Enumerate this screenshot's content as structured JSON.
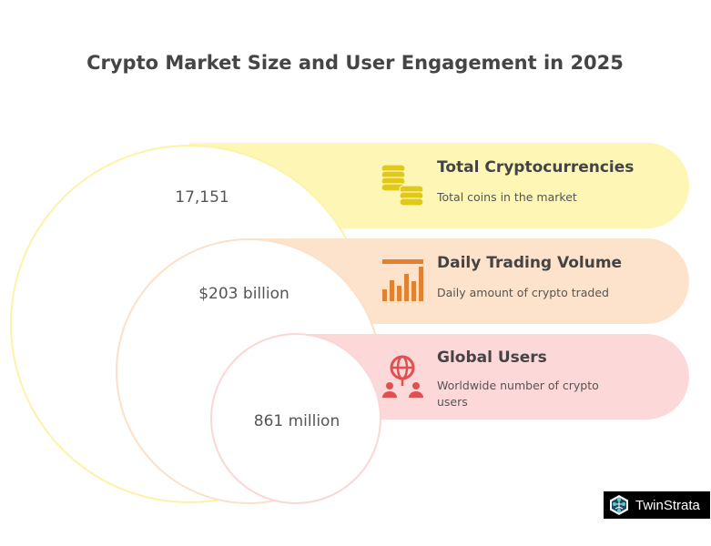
{
  "title": "Crypto Market Size and User Engagement in 2025",
  "items": [
    {
      "value": "17,151",
      "heading": "Total Cryptocurrencies",
      "desc": [
        "Total coins in the market"
      ],
      "icon": "coins-icon",
      "fill": "#fef6b4",
      "stroke": "#fcf3a8",
      "icon_color": "#e0c91a"
    },
    {
      "value": "$203 billion",
      "heading": "Daily Trading Volume",
      "desc": [
        "Daily amount of crypto traded"
      ],
      "icon": "bar-chart-icon",
      "fill": "#fde3cb",
      "stroke": "#fce0c8",
      "icon_color": "#e0822f"
    },
    {
      "value": "861 million",
      "heading": "Global Users",
      "desc": [
        "Worldwide number of crypto",
        "users"
      ],
      "icon": "globe-users-icon",
      "fill": "#fdd8d8",
      "stroke": "#fbd6d6",
      "icon_color": "#e05050"
    }
  ],
  "brand": "TwinStrata"
}
